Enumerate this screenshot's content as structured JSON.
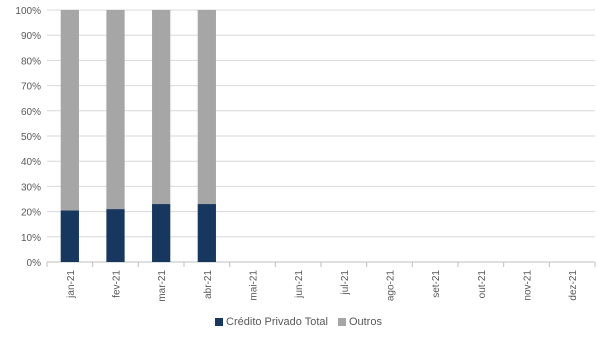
{
  "chart_data": {
    "type": "bar",
    "stacked": true,
    "percent_stacked": true,
    "categories": [
      "jan-21",
      "fev-21",
      "mar-21",
      "abr-21",
      "mai-21",
      "jun-21",
      "jul-21",
      "ago-21",
      "set-21",
      "out-21",
      "nov-21",
      "dez-21"
    ],
    "series": [
      {
        "name": "Crédito Privado Total",
        "color": "#17375e",
        "values": [
          20.5,
          21,
          23,
          23,
          null,
          null,
          null,
          null,
          null,
          null,
          null,
          null
        ]
      },
      {
        "name": "Outros",
        "color": "#a6a6a6",
        "values": [
          79.5,
          79,
          77,
          77,
          null,
          null,
          null,
          null,
          null,
          null,
          null,
          null
        ]
      }
    ],
    "y_ticks": [
      "0%",
      "10%",
      "20%",
      "30%",
      "40%",
      "50%",
      "60%",
      "70%",
      "80%",
      "90%",
      "100%"
    ],
    "ylim": [
      0,
      100
    ],
    "grid": true,
    "legend_position": "bottom"
  }
}
